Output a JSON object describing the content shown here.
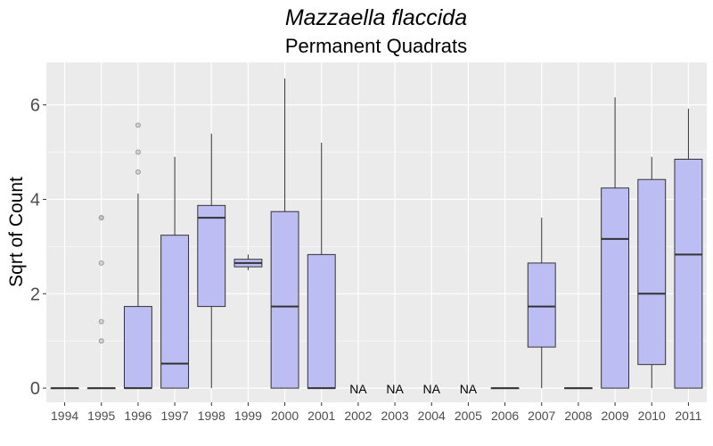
{
  "chart_data": {
    "type": "boxplot",
    "title": "Mazzaella flaccida",
    "subtitle": "Permanent Quadrats",
    "xlabel": "",
    "ylabel": "Sqrt of Count",
    "ylim": [
      -0.3,
      6.9
    ],
    "yticks": [
      0,
      2,
      4,
      6
    ],
    "grid": true,
    "fill_color": "#bcbdf2",
    "panel_color": "#ebebeb",
    "na_label": "NA",
    "categories": [
      "1994",
      "1995",
      "1996",
      "1997",
      "1998",
      "1999",
      "2000",
      "2001",
      "2002",
      "2003",
      "2004",
      "2005",
      "2006",
      "2007",
      "2008",
      "2009",
      "2010",
      "2011"
    ],
    "boxes": [
      {
        "x": "1994",
        "min": 0,
        "q1": 0,
        "median": 0,
        "q3": 0,
        "max": 0,
        "outliers": []
      },
      {
        "x": "1995",
        "min": 0,
        "q1": 0,
        "median": 0,
        "q3": 0,
        "max": 0,
        "outliers": [
          1.0,
          1.41,
          2.65,
          3.61,
          3.61
        ]
      },
      {
        "x": "1996",
        "min": 0,
        "q1": 0,
        "median": 0,
        "q3": 1.73,
        "max": 4.12,
        "outliers": [
          4.58,
          5.0,
          5.57
        ]
      },
      {
        "x": "1997",
        "min": 0,
        "q1": 0,
        "median": 0.52,
        "q3": 3.24,
        "max": 4.9,
        "outliers": []
      },
      {
        "x": "1998",
        "min": 0,
        "q1": 1.73,
        "median": 3.61,
        "q3": 3.87,
        "max": 5.39,
        "outliers": []
      },
      {
        "x": "1999",
        "min": 2.5,
        "q1": 2.57,
        "median": 2.65,
        "q3": 2.73,
        "max": 2.83,
        "outliers": []
      },
      {
        "x": "2000",
        "min": 0,
        "q1": 0,
        "median": 1.73,
        "q3": 3.74,
        "max": 6.56,
        "outliers": []
      },
      {
        "x": "2001",
        "min": 0,
        "q1": 0,
        "median": 0,
        "q3": 2.83,
        "max": 5.2,
        "outliers": []
      },
      {
        "x": "2002",
        "na": true
      },
      {
        "x": "2003",
        "na": true
      },
      {
        "x": "2004",
        "na": true
      },
      {
        "x": "2005",
        "na": true
      },
      {
        "x": "2006",
        "min": 0,
        "q1": 0,
        "median": 0,
        "q3": 0,
        "max": 0,
        "outliers": []
      },
      {
        "x": "2007",
        "min": 0,
        "q1": 0.87,
        "median": 1.73,
        "q3": 2.65,
        "max": 3.61,
        "outliers": []
      },
      {
        "x": "2008",
        "min": 0,
        "q1": 0,
        "median": 0,
        "q3": 0,
        "max": 0,
        "outliers": []
      },
      {
        "x": "2009",
        "min": 0,
        "q1": 0,
        "median": 3.16,
        "q3": 4.24,
        "max": 6.16,
        "outliers": []
      },
      {
        "x": "2010",
        "min": 0,
        "q1": 0.5,
        "median": 2.0,
        "q3": 4.42,
        "max": 4.9,
        "outliers": []
      },
      {
        "x": "2011",
        "min": 0,
        "q1": 0,
        "median": 2.83,
        "q3": 4.85,
        "max": 5.92,
        "outliers": []
      }
    ]
  }
}
